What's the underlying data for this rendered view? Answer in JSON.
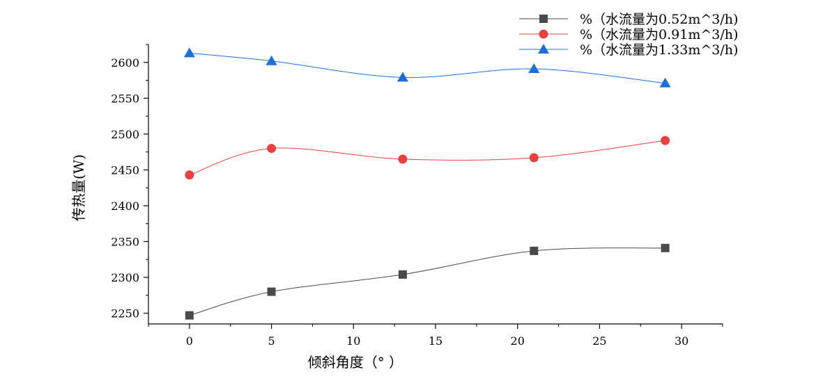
{
  "chart_data": {
    "type": "line",
    "xlabel": "倾斜角度（°  ）",
    "ylabel": "传热量(W)",
    "xlim": [
      -2.5,
      32.5
    ],
    "ylim": [
      2235,
      2625
    ],
    "xticks": [
      "0",
      "5",
      "10",
      "15",
      "20",
      "25",
      "30"
    ],
    "yticks": [
      "2250",
      "2300",
      "2350",
      "2400",
      "2450",
      "2500",
      "2550",
      "2600"
    ],
    "x": [
      0,
      5,
      13,
      21,
      29
    ],
    "series": [
      {
        "name": "%（水流量为0.52m^3/h)",
        "color": "#4a4a4a",
        "marker": "square",
        "values": [
          2247,
          2280,
          2304,
          2337,
          2341
        ]
      },
      {
        "name": "%（水流量为0.91m^3/h)",
        "color": "#e8403f",
        "marker": "circle",
        "values": [
          2443,
          2480,
          2465,
          2467,
          2491
        ]
      },
      {
        "name": "%（水流量为1.33m^3/h)",
        "color": "#1f6fd6",
        "marker": "triangle",
        "values": [
          2613,
          2602,
          2579,
          2591,
          2571
        ]
      }
    ],
    "grid": false,
    "legend": "top-right"
  }
}
